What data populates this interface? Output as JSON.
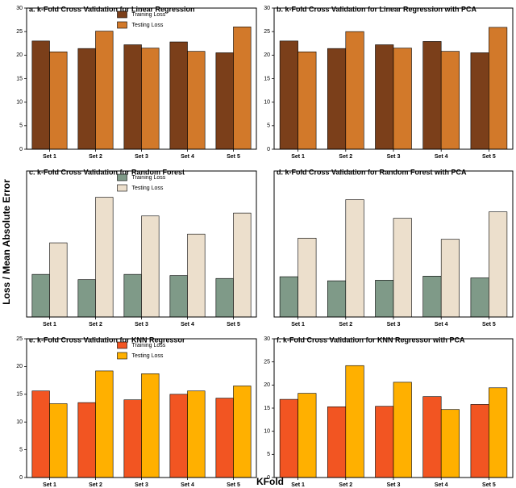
{
  "xlabel": "KFold",
  "ylabel": "Loss / Mean Absolute Error",
  "chart_data": [
    {
      "type": "bar",
      "title": "a. k-Fold Cross Validation for Linear Regression",
      "categories": [
        "Set 1",
        "Set 2",
        "Set 3",
        "Set 4",
        "Set 5"
      ],
      "series": [
        {
          "name": "Training Loss",
          "color": "#7b3f1a",
          "values": [
            23,
            21.4,
            22.2,
            22.8,
            20.5
          ]
        },
        {
          "name": "Testing Loss",
          "color": "#d2792a",
          "values": [
            20.7,
            25.1,
            21.5,
            20.8,
            26
          ]
        }
      ],
      "ylim": [
        0,
        30
      ],
      "yticks": [
        0,
        5,
        10,
        15,
        20,
        25,
        30
      ],
      "legend": "upper center"
    },
    {
      "type": "bar",
      "title": "b. k-Fold Cross Validation for Linear Regression with PCA",
      "categories": [
        "Set 1",
        "Set 2",
        "Set 3",
        "Set 4",
        "Set 5"
      ],
      "series": [
        {
          "name": "Training Loss",
          "color": "#7b3f1a",
          "values": [
            23,
            21.4,
            22.2,
            22.9,
            20.5
          ]
        },
        {
          "name": "Testing Loss",
          "color": "#d2792a",
          "values": [
            20.7,
            25,
            21.5,
            20.8,
            25.9
          ]
        }
      ],
      "ylim": [
        0,
        30
      ],
      "yticks": [
        0,
        5,
        10,
        15,
        20,
        25,
        30
      ],
      "legend": "none"
    },
    {
      "type": "bar",
      "title": "c. k-Fold Cross Validation for Random Forest",
      "categories": [
        "Set 1",
        "Set 2",
        "Set 3",
        "Set 4",
        "Set 5"
      ],
      "series": [
        {
          "name": "Training Loss",
          "color": "#7f9a88",
          "values": [
            7.3,
            6.4,
            7.3,
            7.1,
            6.6
          ]
        },
        {
          "name": "Testing Loss",
          "color": "#ecdfcc",
          "values": [
            12.7,
            20.5,
            17.3,
            14.2,
            17.8
          ]
        }
      ],
      "ylim": [
        0,
        25
      ],
      "legend": "upper center"
    },
    {
      "type": "bar",
      "title": "d. k-Fold Cross Validation for Random Forest with PCA",
      "categories": [
        "Set 1",
        "Set 2",
        "Set 3",
        "Set 4",
        "Set 5"
      ],
      "series": [
        {
          "name": "Training Loss",
          "color": "#7f9a88",
          "values": [
            6.9,
            6.2,
            6.3,
            7.0,
            6.7
          ]
        },
        {
          "name": "Testing Loss",
          "color": "#ecdfcc",
          "values": [
            13.5,
            20.1,
            16.9,
            13.3,
            18
          ]
        }
      ],
      "ylim": [
        0,
        25
      ],
      "legend": "none"
    },
    {
      "type": "bar",
      "title": "e. k-Fold Cross Validation for KNN Regressor",
      "categories": [
        "Set 1",
        "Set 2",
        "Set 3",
        "Set 4",
        "Set 5"
      ],
      "series": [
        {
          "name": "Training Loss",
          "color": "#f25522",
          "values": [
            15.6,
            13.5,
            14,
            15,
            14.3
          ]
        },
        {
          "name": "Testing Loss",
          "color": "#ffb000",
          "values": [
            13.3,
            19.2,
            18.7,
            15.6,
            16.5
          ]
        }
      ],
      "ylim": [
        0,
        25
      ],
      "yticks": [
        0,
        5,
        10,
        15,
        20,
        25
      ],
      "legend": "upper center"
    },
    {
      "type": "bar",
      "title": "f. k-Fold Cross Validation for KNN Regressor with PCA",
      "categories": [
        "Set 1",
        "Set 2",
        "Set 3",
        "Set 4",
        "Set 5"
      ],
      "series": [
        {
          "name": "Training Loss",
          "color": "#f25522",
          "values": [
            16.9,
            15.3,
            15.4,
            17.5,
            15.8
          ]
        },
        {
          "name": "Testing Loss",
          "color": "#ffb000",
          "values": [
            18.2,
            24.2,
            20.6,
            14.7,
            19.4
          ]
        }
      ],
      "ylim": [
        0,
        30
      ],
      "yticks": [
        0,
        5,
        10,
        15,
        20,
        25,
        30
      ],
      "legend": "none"
    }
  ]
}
